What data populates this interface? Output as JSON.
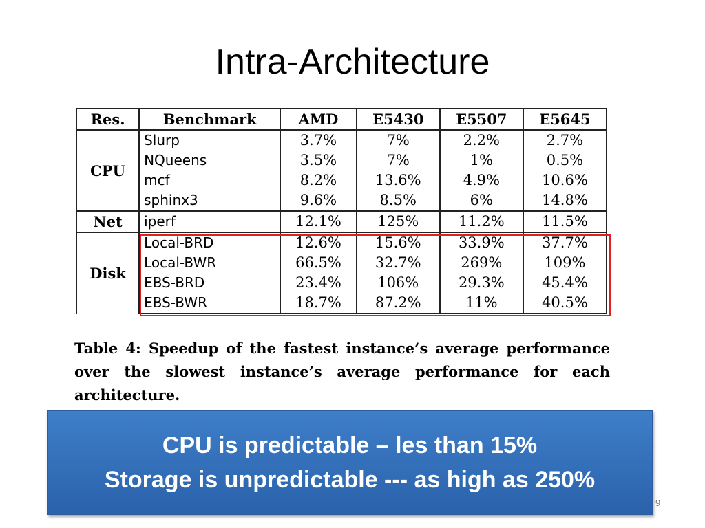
{
  "slide": {
    "title": "Intra-Architecture",
    "page_number": "9"
  },
  "table": {
    "headers": [
      "Res.",
      "Benchmark",
      "AMD",
      "E5430",
      "E5507",
      "E5645"
    ],
    "groups": [
      {
        "resource": "CPU",
        "rows": [
          {
            "benchmark": "Slurp",
            "values": [
              "3.7%",
              "7%",
              "2.2%",
              "2.7%"
            ]
          },
          {
            "benchmark": "NQueens",
            "values": [
              "3.5%",
              "7%",
              "1%",
              "0.5%"
            ]
          },
          {
            "benchmark": "mcf",
            "values": [
              "8.2%",
              "13.6%",
              "4.9%",
              "10.6%"
            ]
          },
          {
            "benchmark": "sphinx3",
            "values": [
              "9.6%",
              "8.5%",
              "6%",
              "14.8%"
            ]
          }
        ]
      },
      {
        "resource": "Net",
        "rows": [
          {
            "benchmark": "iperf",
            "values": [
              "12.1%",
              "125%",
              "11.2%",
              "11.5%"
            ]
          }
        ]
      },
      {
        "resource": "Disk",
        "rows": [
          {
            "benchmark": "Local-BRD",
            "values": [
              "12.6%",
              "15.6%",
              "33.9%",
              "37.7%"
            ]
          },
          {
            "benchmark": "Local-BWR",
            "values": [
              "66.5%",
              "32.7%",
              "269%",
              "109%"
            ]
          },
          {
            "benchmark": "EBS-BRD",
            "values": [
              "23.4%",
              "106%",
              "29.3%",
              "45.4%"
            ]
          },
          {
            "benchmark": "EBS-BWR",
            "values": [
              "18.7%",
              "87.2%",
              "11%",
              "40.5%"
            ]
          }
        ]
      }
    ],
    "highlight_color": "#e02020"
  },
  "caption": "Table 4: Speedup of the fastest instance’s average performance over the slowest instance’s average performance for each architecture.",
  "callout": {
    "line1": "CPU is predictable – les than 15%",
    "line2": "Storage is unpredictable --- as high as 250%",
    "color": "#3a75c0"
  }
}
